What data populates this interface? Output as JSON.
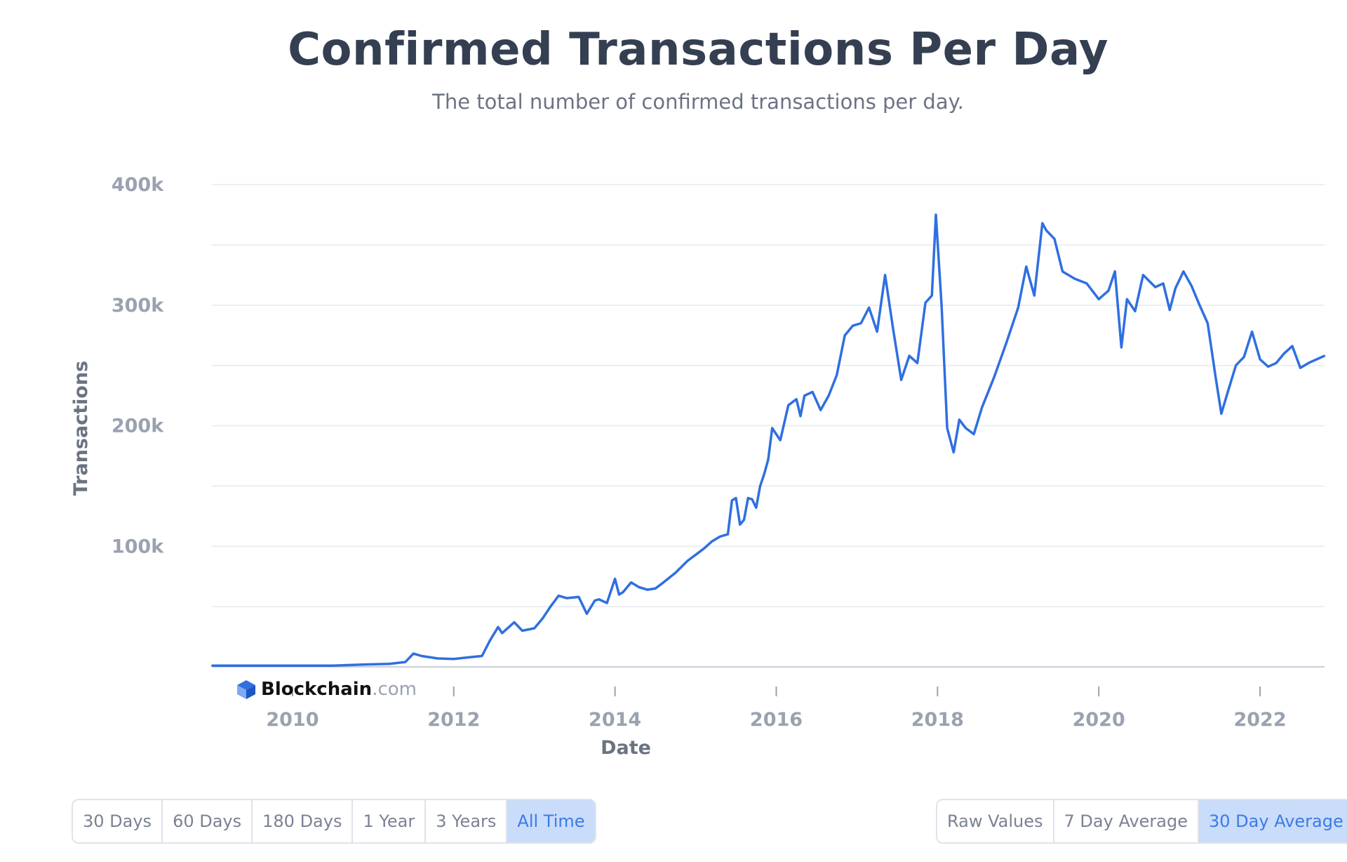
{
  "header": {
    "title": "Confirmed Transactions Per Day",
    "subtitle": "The total number of confirmed transactions per day."
  },
  "logo": {
    "brand": "Blockchain",
    "suffix": ".com"
  },
  "range_buttons": [
    {
      "label": "30 Days",
      "active": false
    },
    {
      "label": "60 Days",
      "active": false
    },
    {
      "label": "180 Days",
      "active": false
    },
    {
      "label": "1 Year",
      "active": false
    },
    {
      "label": "3 Years",
      "active": false
    },
    {
      "label": "All Time",
      "active": true
    }
  ],
  "average_buttons": [
    {
      "label": "Raw Values",
      "active": false
    },
    {
      "label": "7 Day Average",
      "active": false
    },
    {
      "label": "30 Day Average",
      "active": true
    }
  ],
  "colors": {
    "line": "#2f6fe0",
    "accent": "#3c7be6",
    "active_bg": "#c9dcfa"
  },
  "chart_data": {
    "type": "line",
    "title": "Confirmed Transactions Per Day",
    "subtitle": "The total number of confirmed transactions per day.",
    "xlabel": "Date",
    "ylabel": "Transactions",
    "x_ticks": [
      "2010",
      "2012",
      "2014",
      "2016",
      "2018",
      "2020",
      "2022"
    ],
    "y_ticks": [
      "100k",
      "200k",
      "300k",
      "400k"
    ],
    "xlim": [
      2009.0,
      2022.8
    ],
    "ylim": [
      0,
      400000
    ],
    "grid": true,
    "series": [
      {
        "x": [
          2009.0,
          2009.5,
          2010.0,
          2010.5,
          2010.9,
          2011.2,
          2011.4,
          2011.5,
          2011.6,
          2011.8,
          2012.0,
          2012.2,
          2012.35,
          2012.45,
          2012.55,
          2012.6,
          2012.75,
          2012.85,
          2013.0,
          2013.1,
          2013.2,
          2013.3,
          2013.4,
          2013.55,
          2013.65,
          2013.75,
          2013.8,
          2013.9,
          2014.0,
          2014.05,
          2014.1,
          2014.2,
          2014.3,
          2014.4,
          2014.5,
          2014.6,
          2014.75,
          2014.9,
          2015.0,
          2015.1,
          2015.2,
          2015.3,
          2015.4,
          2015.45,
          2015.5,
          2015.55,
          2015.6,
          2015.65,
          2015.7,
          2015.75,
          2015.8,
          2015.85,
          2015.9,
          2015.95,
          2016.05,
          2016.15,
          2016.25,
          2016.3,
          2016.35,
          2016.45,
          2016.55,
          2016.65,
          2016.75,
          2016.85,
          2016.95,
          2017.05,
          2017.15,
          2017.25,
          2017.35,
          2017.45,
          2017.55,
          2017.65,
          2017.75,
          2017.85,
          2017.93,
          2017.98,
          2018.05,
          2018.12,
          2018.2,
          2018.27,
          2018.35,
          2018.45,
          2018.55,
          2018.7,
          2018.85,
          2019.0,
          2019.1,
          2019.2,
          2019.3,
          2019.35,
          2019.45,
          2019.55,
          2019.7,
          2019.85,
          2020.0,
          2020.12,
          2020.2,
          2020.28,
          2020.35,
          2020.45,
          2020.55,
          2020.7,
          2020.8,
          2020.88,
          2020.95,
          2021.05,
          2021.15,
          2021.25,
          2021.35,
          2021.45,
          2021.52,
          2021.6,
          2021.7,
          2021.8,
          2021.9,
          2022.0,
          2022.1,
          2022.2,
          2022.3,
          2022.4,
          2022.5,
          2022.6,
          2022.7,
          2022.8
        ],
        "values": [
          1000,
          1000,
          1000,
          1000,
          2000,
          2500,
          4000,
          11000,
          9000,
          7000,
          6500,
          8000,
          9000,
          22000,
          33000,
          28000,
          37000,
          30000,
          32000,
          40000,
          50000,
          59000,
          57000,
          58000,
          44000,
          55000,
          56000,
          53000,
          73000,
          60000,
          62000,
          70000,
          66000,
          64000,
          65000,
          70000,
          78000,
          88000,
          93000,
          98000,
          104000,
          108000,
          110000,
          138000,
          140000,
          118000,
          122000,
          140000,
          139000,
          132000,
          150000,
          160000,
          172000,
          198000,
          188000,
          217000,
          222000,
          208000,
          225000,
          228000,
          213000,
          225000,
          242000,
          275000,
          283000,
          285000,
          298000,
          278000,
          325000,
          280000,
          238000,
          258000,
          252000,
          302000,
          308000,
          375000,
          300000,
          198000,
          178000,
          205000,
          198000,
          193000,
          215000,
          240000,
          268000,
          298000,
          332000,
          308000,
          368000,
          362000,
          355000,
          328000,
          322000,
          318000,
          305000,
          312000,
          328000,
          265000,
          305000,
          295000,
          325000,
          315000,
          318000,
          296000,
          314000,
          328000,
          316000,
          300000,
          285000,
          240000,
          210000,
          228000,
          250000,
          257000,
          278000,
          255000,
          249000,
          252000,
          260000,
          266000,
          248000,
          252000,
          255000,
          258000
        ]
      }
    ]
  }
}
